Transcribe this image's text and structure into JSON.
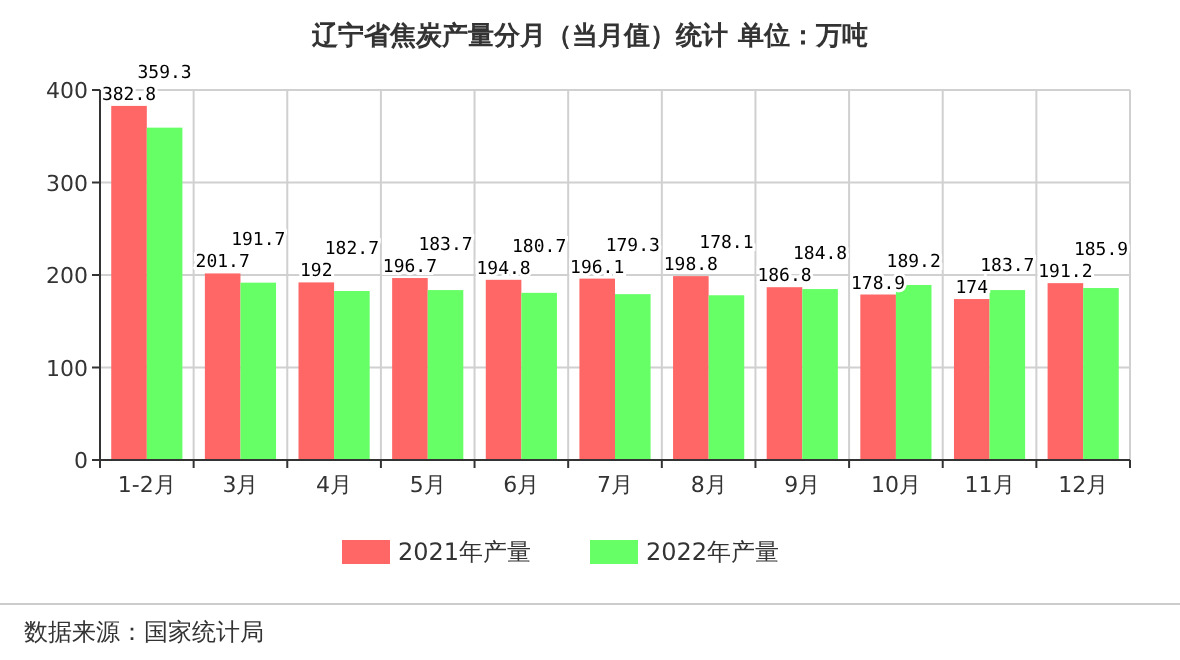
{
  "chart_data": {
    "type": "bar",
    "title": "辽宁省焦炭产量分月（当月值）统计  单位：万吨",
    "categories": [
      "1-2月",
      "3月",
      "4月",
      "5月",
      "6月",
      "7月",
      "8月",
      "9月",
      "10月",
      "11月",
      "12月"
    ],
    "series": [
      {
        "name": "2021年产量",
        "color": "#ff6666",
        "values": [
          382.8,
          201.7,
          192,
          196.7,
          194.8,
          196.1,
          198.8,
          186.8,
          178.9,
          174,
          191.2
        ]
      },
      {
        "name": "2022年产量",
        "color": "#66ff66",
        "values": [
          359.3,
          191.7,
          182.7,
          183.7,
          180.7,
          179.3,
          178.1,
          184.8,
          189.2,
          183.7,
          185.9
        ]
      }
    ],
    "ylim": [
      0,
      400
    ],
    "yticks": [
      0,
      100,
      200,
      300,
      400
    ],
    "grid": true,
    "legend": "bottom",
    "data_labels": true,
    "annotations": [
      "数据来源：国家统计局"
    ]
  }
}
